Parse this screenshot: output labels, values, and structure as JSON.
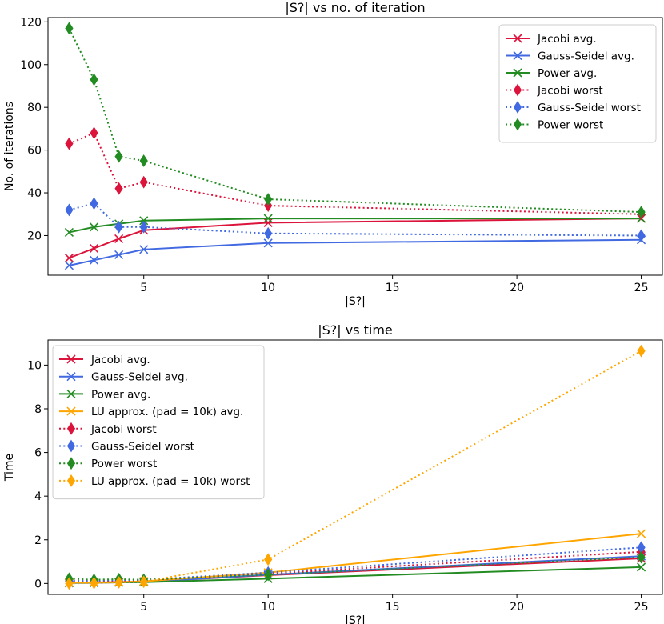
{
  "chart_data": [
    {
      "type": "line",
      "title": "|S?| vs no. of iteration",
      "xlabel": "|S?|",
      "ylabel": "No. of iterations",
      "xlim": [
        1.15,
        25.85
      ],
      "ylim": [
        1.45,
        122.0
      ],
      "xticks": [
        5,
        10,
        15,
        20,
        25
      ],
      "yticks": [
        20,
        40,
        60,
        80,
        100,
        120
      ],
      "grid": false,
      "legend_position": "upper right",
      "x": [
        2,
        3,
        4,
        5,
        10,
        25
      ],
      "series": [
        {
          "name": "Jacobi avg.",
          "color": "#dc143c",
          "marker": "x",
          "linestyle": "solid",
          "values": [
            9.5,
            14,
            18.5,
            22.5,
            26,
            28
          ]
        },
        {
          "name": "Gauss-Seidel avg.",
          "color": "#4169e1",
          "marker": "x",
          "linestyle": "solid",
          "values": [
            6,
            8.5,
            11,
            13.5,
            16.5,
            18
          ]
        },
        {
          "name": "Power avg.",
          "color": "#228b22",
          "marker": "x",
          "linestyle": "solid",
          "values": [
            21.5,
            24,
            25.5,
            27,
            28,
            28
          ]
        },
        {
          "name": "Jacobi worst",
          "color": "#dc143c",
          "marker": "diamond",
          "linestyle": "dotted",
          "values": [
            63,
            68,
            42,
            45,
            34,
            30
          ]
        },
        {
          "name": "Gauss-Seidel worst",
          "color": "#4169e1",
          "marker": "diamond",
          "linestyle": "dotted",
          "values": [
            32,
            35,
            24,
            24,
            21,
            20
          ]
        },
        {
          "name": "Power worst",
          "color": "#228b22",
          "marker": "diamond",
          "linestyle": "dotted",
          "values": [
            117,
            93,
            57,
            55,
            37,
            31
          ]
        }
      ]
    },
    {
      "type": "line",
      "title": "|S?| vs time",
      "xlabel": "|S?|",
      "ylabel": "Time",
      "xlim": [
        1.15,
        25.85
      ],
      "ylim": [
        -0.5,
        11.15
      ],
      "xticks": [
        5,
        10,
        15,
        20,
        25
      ],
      "yticks": [
        0,
        2,
        4,
        6,
        8,
        10
      ],
      "grid": false,
      "legend_position": "upper left",
      "x": [
        2,
        3,
        4,
        5,
        10,
        25
      ],
      "series": [
        {
          "name": "Jacobi avg.",
          "color": "#dc143c",
          "marker": "x",
          "linestyle": "solid",
          "values": [
            0.03,
            0.04,
            0.06,
            0.08,
            0.38,
            1.15
          ]
        },
        {
          "name": "Gauss-Seidel avg.",
          "color": "#4169e1",
          "marker": "x",
          "linestyle": "solid",
          "values": [
            0.02,
            0.03,
            0.05,
            0.07,
            0.4,
            1.25
          ]
        },
        {
          "name": "Power avg.",
          "color": "#228b22",
          "marker": "x",
          "linestyle": "solid",
          "values": [
            0.03,
            0.04,
            0.05,
            0.06,
            0.22,
            0.75
          ]
        },
        {
          "name": "LU approx. (pad = 10k) avg.",
          "color": "#ffa500",
          "marker": "x",
          "linestyle": "solid",
          "values": [
            0.04,
            0.05,
            0.07,
            0.1,
            0.5,
            2.28
          ]
        },
        {
          "name": "Jacobi worst",
          "color": "#dc143c",
          "marker": "diamond",
          "linestyle": "dotted",
          "values": [
            0.1,
            0.1,
            0.12,
            0.15,
            0.45,
            1.45
          ]
        },
        {
          "name": "Gauss-Seidel worst",
          "color": "#4169e1",
          "marker": "diamond",
          "linestyle": "dotted",
          "values": [
            0.12,
            0.13,
            0.15,
            0.17,
            0.5,
            1.65
          ]
        },
        {
          "name": "Power worst",
          "color": "#228b22",
          "marker": "diamond",
          "linestyle": "dotted",
          "values": [
            0.22,
            0.17,
            0.2,
            0.17,
            0.4,
            1.2
          ]
        },
        {
          "name": "LU approx. (pad = 10k) worst",
          "color": "#ffa500",
          "marker": "diamond",
          "linestyle": "dotted",
          "values": [
            0.0,
            0.02,
            0.05,
            0.08,
            1.1,
            10.65
          ]
        }
      ]
    }
  ]
}
